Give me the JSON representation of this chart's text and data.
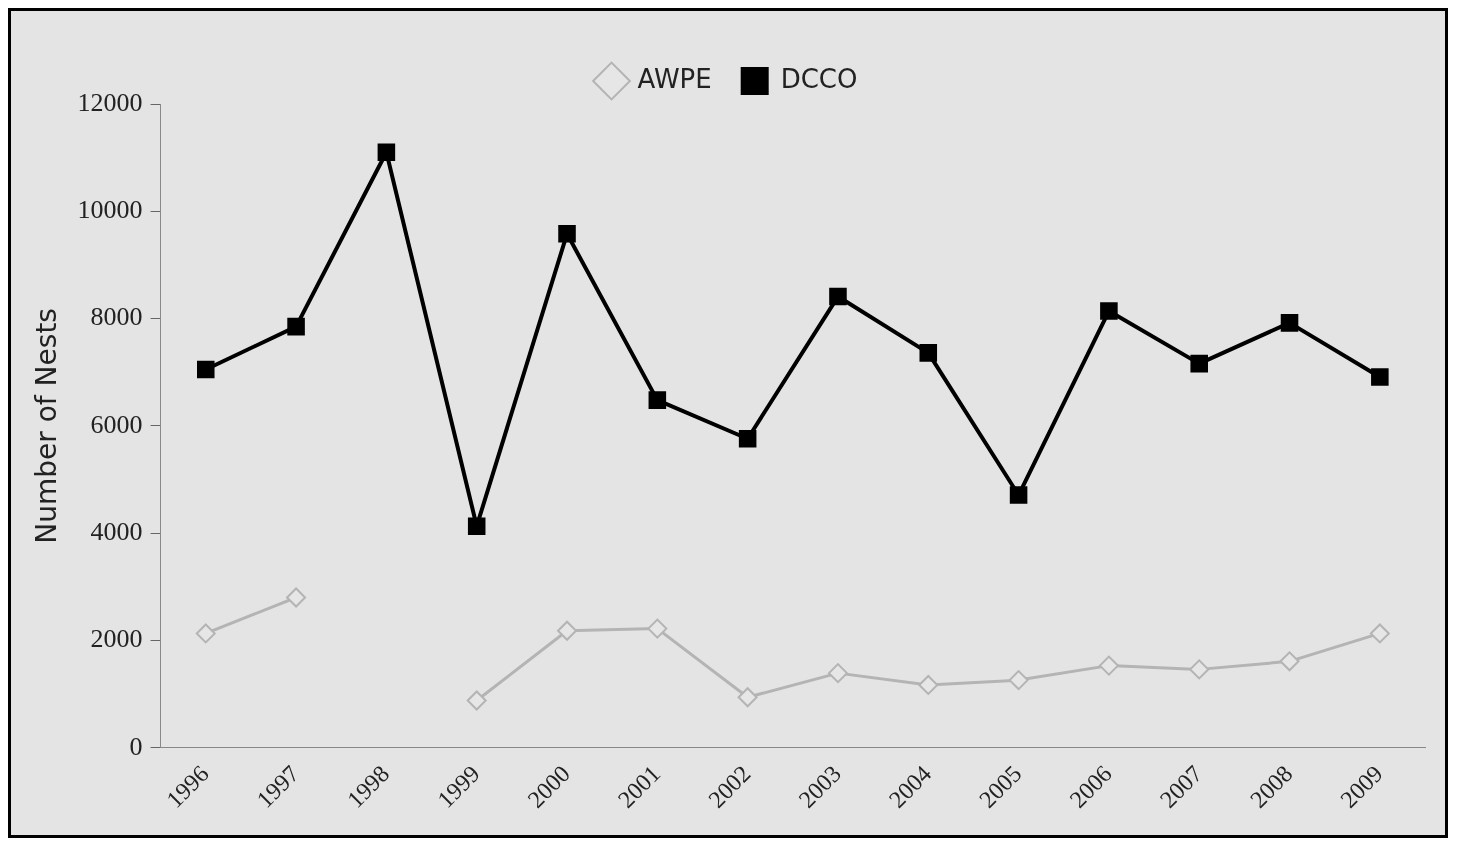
{
  "chart_data": {
    "type": "line",
    "ylabel": "Number of Nests",
    "categories": [
      "1996",
      "1997",
      "1998",
      "1999",
      "2000",
      "2001",
      "2002",
      "2003",
      "2004",
      "2005",
      "2006",
      "2007",
      "2008",
      "2009"
    ],
    "series": [
      {
        "name": "AWPE",
        "color": "#b4b4b4",
        "marker": "diamond",
        "values": [
          2130,
          2800,
          null,
          880,
          2180,
          2220,
          940,
          1390,
          1170,
          1260,
          1530,
          1460,
          1610,
          2130
        ]
      },
      {
        "name": "DCCO",
        "color": "#000000",
        "marker": "square",
        "values": [
          7050,
          7850,
          11100,
          4130,
          9580,
          6480,
          5760,
          8410,
          7360,
          4710,
          8140,
          7160,
          7920,
          6910
        ]
      }
    ],
    "ylim": [
      0,
      12000
    ],
    "yticks": [
      0,
      2000,
      4000,
      6000,
      8000,
      10000,
      12000
    ],
    "grid": false,
    "legend": "top"
  }
}
